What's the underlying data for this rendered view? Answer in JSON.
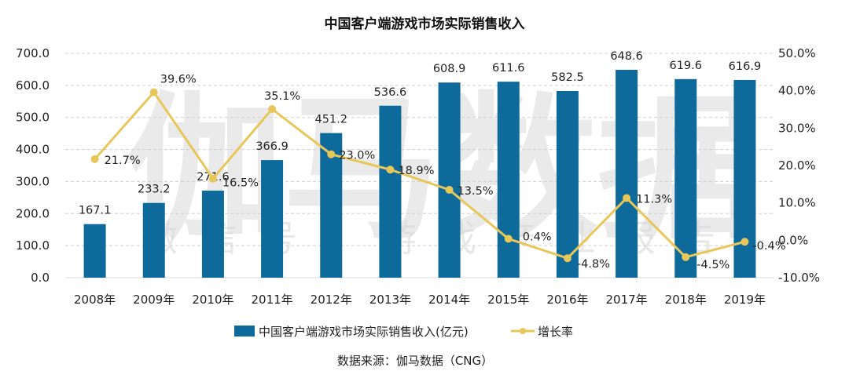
{
  "chart_data": {
    "type": "bar",
    "title": "中国客户端游戏市场实际销售收入",
    "categories": [
      "2008年",
      "2009年",
      "2010年",
      "2011年",
      "2012年",
      "2013年",
      "2014年",
      "2015年",
      "2016年",
      "2017年",
      "2018年",
      "2019年"
    ],
    "series": [
      {
        "name": "中国客户端游戏市场实际销售收入(亿元)",
        "type": "bar",
        "axis": "left",
        "color": "#0e6a9a",
        "values": [
          167.1,
          233.2,
          271.6,
          366.9,
          451.2,
          536.6,
          608.9,
          611.6,
          582.5,
          648.6,
          619.6,
          616.9
        ],
        "labels": [
          "167.1",
          "233.2",
          "271.6",
          "366.9",
          "451.2",
          "536.6",
          "608.9",
          "611.6",
          "582.5",
          "648.6",
          "619.6",
          "616.9"
        ]
      },
      {
        "name": "增长率",
        "type": "line",
        "axis": "right",
        "color": "#e8c75a",
        "values": [
          21.7,
          39.6,
          16.5,
          35.1,
          23.0,
          18.9,
          13.5,
          0.4,
          -4.8,
          11.3,
          -4.5,
          -0.4
        ],
        "labels": [
          "21.7%",
          "39.6%",
          "16.5%",
          "35.1%",
          "23.0%",
          "18.9%",
          "13.5%",
          "0.4%",
          "-4.8%",
          "11.3%",
          "-4.5%",
          "-0.4%"
        ]
      }
    ],
    "y_left": {
      "ylim": [
        0,
        700
      ],
      "ticks": [
        0,
        100,
        200,
        300,
        400,
        500,
        600,
        700
      ],
      "tick_labels": [
        "0.0",
        "100.0",
        "200.0",
        "300.0",
        "400.0",
        "500.0",
        "600.0",
        "700.0"
      ]
    },
    "y_right": {
      "ylim": [
        -10,
        50
      ],
      "ticks": [
        -10,
        0,
        10,
        20,
        30,
        40,
        50
      ],
      "tick_labels": [
        "-10.0%",
        "0.0%",
        "10.0%",
        "20.0%",
        "30.0%",
        "40.0%",
        "50.0%"
      ]
    },
    "xlabel": "",
    "ylabel": "",
    "grid": true,
    "legend": "bottom",
    "source": "数据来源：伽马数据（CNG）",
    "watermark": {
      "large": "伽马数据",
      "small": "微信号：游戏产业报告"
    }
  }
}
